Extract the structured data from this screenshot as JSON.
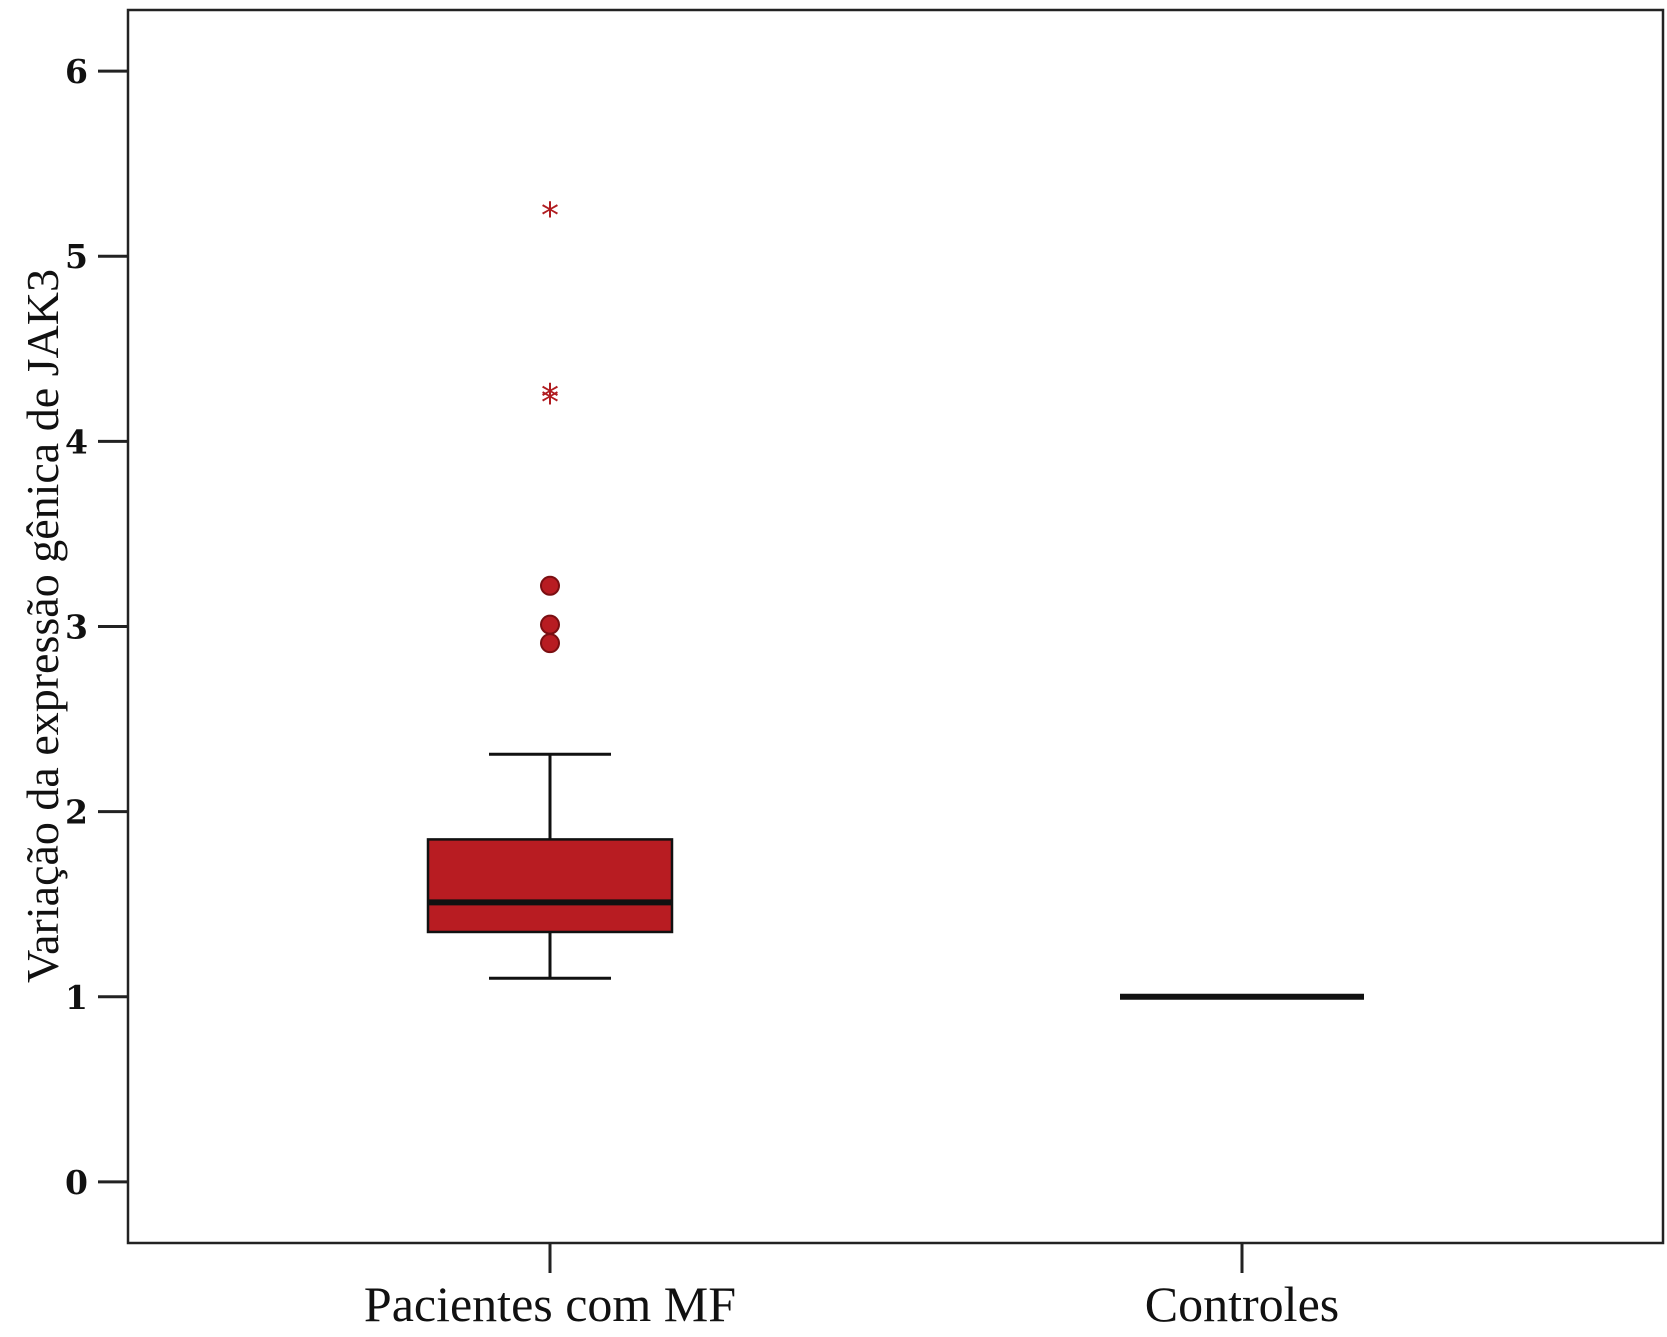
{
  "chart_data": {
    "type": "box",
    "ylabel": "Variação da expressão gênica de JAK3",
    "xlabel": "",
    "ylim": [
      -0.33,
      6.33
    ],
    "yticks": [
      0,
      1,
      2,
      3,
      4,
      5,
      6
    ],
    "ytick_labels": [
      "0",
      "1",
      "2",
      "3",
      "4",
      "5",
      "6"
    ],
    "categories": [
      "Pacientes com MF",
      "Controles"
    ],
    "boxes": [
      {
        "category": "Pacientes com MF",
        "whisker_low": 1.1,
        "q1": 1.35,
        "median": 1.51,
        "q3": 1.85,
        "whisker_high": 2.31,
        "outliers_circle": [
          3.22,
          3.01,
          2.91
        ],
        "outliers_extreme": [
          5.23,
          4.25,
          4.22
        ],
        "color": "#b81c22"
      },
      {
        "category": "Controles",
        "whisker_low": 1.0,
        "q1": 1.0,
        "median": 1.0,
        "q3": 1.0,
        "whisker_high": 1.0,
        "outliers_circle": [],
        "outliers_extreme": [],
        "color": "#b81c22"
      }
    ],
    "outlier_star_glyph": "*",
    "grid": false,
    "legend": "none"
  }
}
